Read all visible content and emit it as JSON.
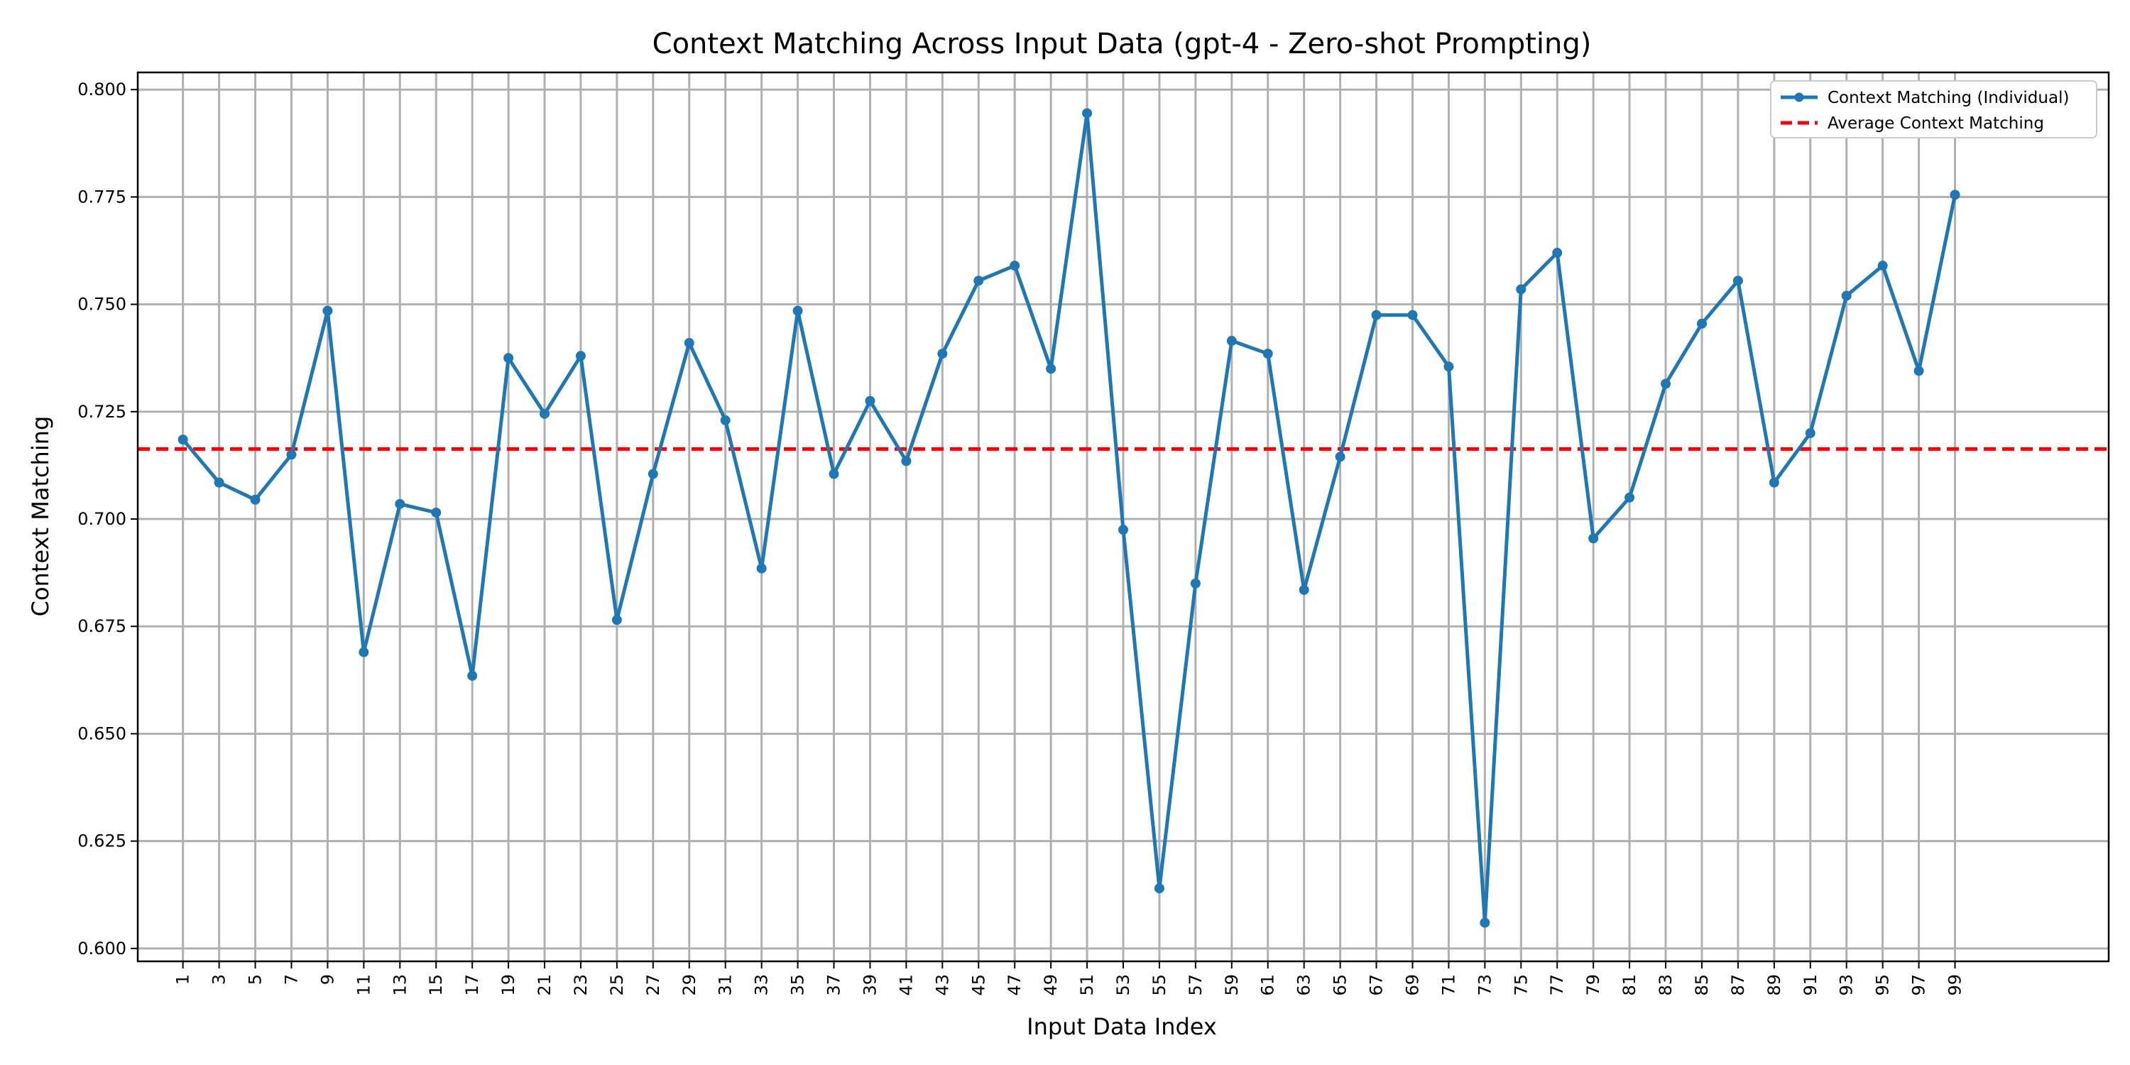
{
  "chart_data": {
    "type": "line",
    "title": "Context Matching Across Input Data (gpt-4 - Zero-shot Prompting)",
    "xlabel": "Input Data Index",
    "ylabel": "Context Matching",
    "ylim": [
      0.597,
      0.804
    ],
    "xlim": [
      -1.5,
      107.5
    ],
    "yticks": [
      "0.600",
      "0.625",
      "0.650",
      "0.675",
      "0.700",
      "0.725",
      "0.750",
      "0.775",
      "0.800"
    ],
    "x": [
      1,
      3,
      5,
      7,
      9,
      11,
      13,
      15,
      17,
      19,
      21,
      23,
      25,
      27,
      29,
      31,
      33,
      35,
      37,
      39,
      41,
      43,
      45,
      47,
      49,
      51,
      53,
      55,
      57,
      59,
      61,
      63,
      65,
      67,
      69,
      71,
      73,
      75,
      77,
      79,
      81,
      83,
      85,
      87,
      89,
      91,
      93,
      95,
      97,
      99
    ],
    "series": [
      {
        "name": "Context Matching (Individual)",
        "color": "#1f77b4",
        "marker": "circle",
        "values": [
          0.7185,
          0.7085,
          0.7045,
          0.715,
          0.7485,
          0.669,
          0.7035,
          0.7015,
          0.6635,
          0.7375,
          0.7245,
          0.738,
          0.6765,
          0.7105,
          0.741,
          0.723,
          0.6885,
          0.7485,
          0.7105,
          0.7275,
          0.7135,
          0.7385,
          0.7555,
          0.759,
          0.735,
          0.7945,
          0.6975,
          0.614,
          0.685,
          0.7415,
          0.7385,
          0.6835,
          0.7145,
          0.7475,
          0.7475,
          0.7355,
          0.606,
          0.7535,
          0.762,
          0.6955,
          0.705,
          0.7315,
          0.7455,
          0.7555,
          0.7085,
          0.72,
          0.752,
          0.759,
          0.7345,
          0.7755
        ]
      },
      {
        "name": "Average Context Matching",
        "color": "#ff0000",
        "style": "dashed",
        "value": 0.7163
      }
    ],
    "grid": true,
    "legend_position": "top-right"
  }
}
